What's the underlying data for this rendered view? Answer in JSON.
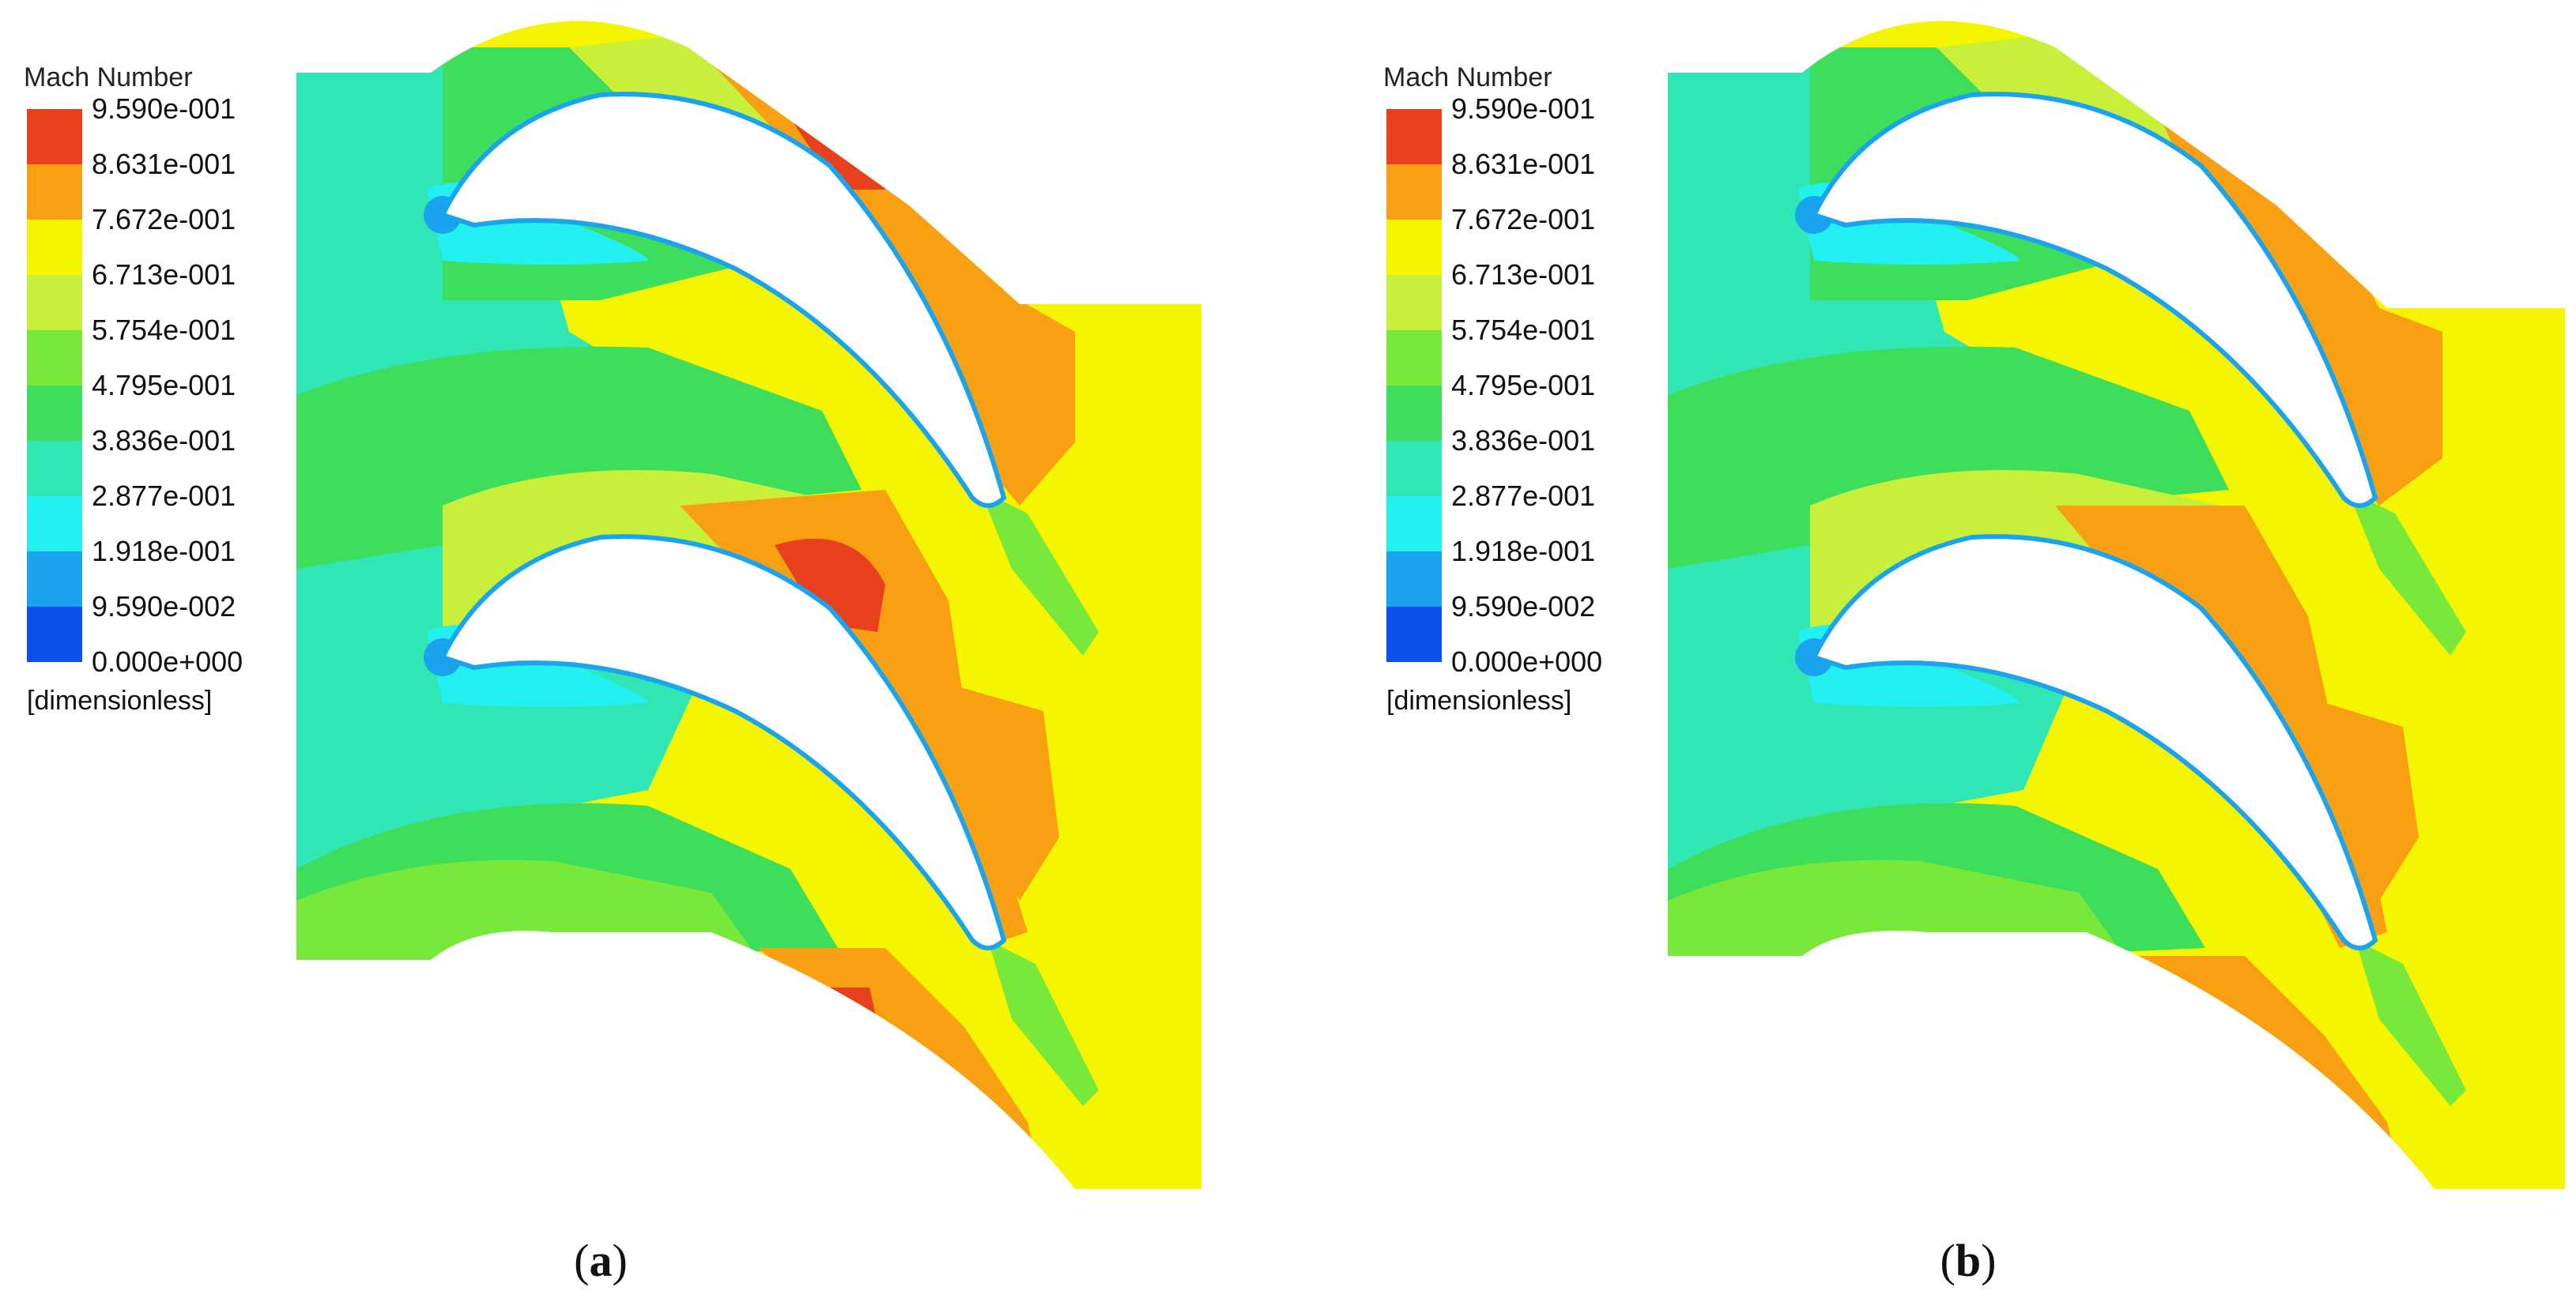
{
  "legend": {
    "title": "Mach Number",
    "unit": "[dimensionless]",
    "ticks": [
      "9.590e-001",
      "8.631e-001",
      "7.672e-001",
      "6.713e-001",
      "5.754e-001",
      "4.795e-001",
      "3.836e-001",
      "2.877e-001",
      "1.918e-001",
      "9.590e-002",
      "0.000e+000"
    ],
    "colors": [
      "#e8401c",
      "#f8a012",
      "#f5f500",
      "#c8f03a",
      "#78e83a",
      "#3ede5c",
      "#2fe6b4",
      "#23f0f0",
      "#1aa4f0",
      "#0b50e8"
    ]
  },
  "panels": [
    {
      "id": "a",
      "caption_open": "(",
      "caption_letter": "a",
      "caption_close": ")"
    },
    {
      "id": "b",
      "caption_open": "(",
      "caption_letter": "b",
      "caption_close": ")"
    }
  ]
}
